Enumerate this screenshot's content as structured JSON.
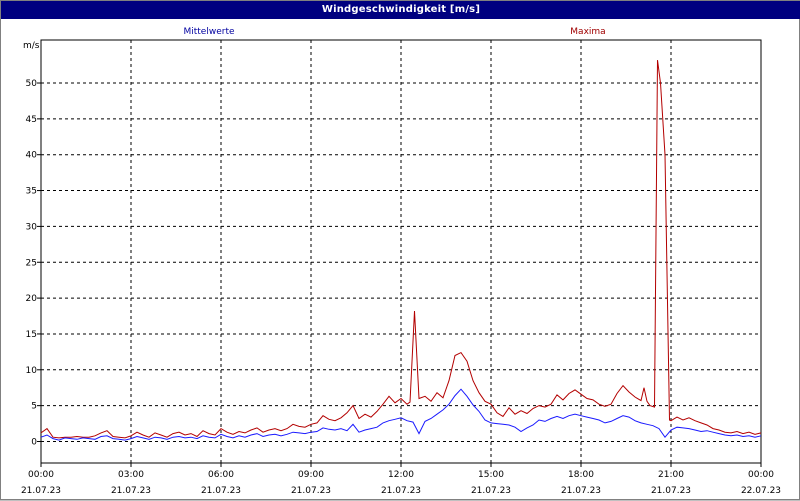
{
  "window": {
    "title": "Windgeschwindigkeit [m/s]"
  },
  "legend": {
    "left_label": "Mittelwerte",
    "right_label": "Maxima"
  },
  "colors": {
    "mean": "#1a1aff",
    "max": "#b30000",
    "legend_mean": "#0000a0",
    "legend_max": "#a00000",
    "titlebar": "#000080"
  },
  "chart_data": {
    "type": "line",
    "title": "Windgeschwindigkeit [m/s]",
    "ylabel": "m/s",
    "xlabel": "",
    "ylim": [
      -3,
      56
    ],
    "xlim": [
      0,
      24
    ],
    "grid": true,
    "legend_placement": "top",
    "y_ticks": [
      0,
      5,
      10,
      15,
      20,
      25,
      30,
      35,
      40,
      45,
      50
    ],
    "x_ticks": [
      {
        "x": 0,
        "time": "00:00",
        "date": "21.07.23"
      },
      {
        "x": 3,
        "time": "03:00",
        "date": "21.07.23"
      },
      {
        "x": 6,
        "time": "06:00",
        "date": "21.07.23"
      },
      {
        "x": 9,
        "time": "09:00",
        "date": "21.07.23"
      },
      {
        "x": 12,
        "time": "12:00",
        "date": "21.07.23"
      },
      {
        "x": 15,
        "time": "15:00",
        "date": "21.07.23"
      },
      {
        "x": 18,
        "time": "18:00",
        "date": "21.07.23"
      },
      {
        "x": 21,
        "time": "21:00",
        "date": "21.07.23"
      },
      {
        "x": 24,
        "time": "00:00",
        "date": "22.07.23"
      }
    ],
    "series": [
      {
        "name": "Mittelwerte",
        "color": "#1a1aff",
        "points": [
          [
            0.0,
            0.6
          ],
          [
            0.2,
            0.9
          ],
          [
            0.4,
            0.4
          ],
          [
            0.6,
            0.2
          ],
          [
            0.8,
            0.5
          ],
          [
            1.0,
            0.4
          ],
          [
            1.2,
            0.3
          ],
          [
            1.4,
            0.5
          ],
          [
            1.6,
            0.4
          ],
          [
            1.8,
            0.3
          ],
          [
            2.0,
            0.7
          ],
          [
            2.2,
            0.8
          ],
          [
            2.4,
            0.4
          ],
          [
            2.6,
            0.3
          ],
          [
            2.8,
            0.2
          ],
          [
            3.0,
            0.4
          ],
          [
            3.2,
            0.7
          ],
          [
            3.4,
            0.5
          ],
          [
            3.6,
            0.3
          ],
          [
            3.8,
            0.6
          ],
          [
            4.0,
            0.5
          ],
          [
            4.2,
            0.3
          ],
          [
            4.4,
            0.6
          ],
          [
            4.6,
            0.7
          ],
          [
            4.8,
            0.5
          ],
          [
            5.0,
            0.6
          ],
          [
            5.2,
            0.4
          ],
          [
            5.4,
            0.8
          ],
          [
            5.6,
            0.6
          ],
          [
            5.8,
            0.5
          ],
          [
            6.0,
            1.0
          ],
          [
            6.2,
            0.7
          ],
          [
            6.4,
            0.5
          ],
          [
            6.6,
            0.8
          ],
          [
            6.8,
            0.6
          ],
          [
            7.0,
            0.9
          ],
          [
            7.2,
            1.1
          ],
          [
            7.4,
            0.7
          ],
          [
            7.6,
            0.9
          ],
          [
            7.8,
            1.0
          ],
          [
            8.0,
            0.8
          ],
          [
            8.2,
            1.0
          ],
          [
            8.4,
            1.3
          ],
          [
            8.6,
            1.2
          ],
          [
            8.8,
            1.1
          ],
          [
            9.0,
            1.3
          ],
          [
            9.2,
            1.4
          ],
          [
            9.4,
            1.9
          ],
          [
            9.6,
            1.7
          ],
          [
            9.8,
            1.6
          ],
          [
            10.0,
            1.8
          ],
          [
            10.2,
            1.5
          ],
          [
            10.4,
            2.4
          ],
          [
            10.6,
            1.3
          ],
          [
            10.8,
            1.6
          ],
          [
            11.0,
            1.8
          ],
          [
            11.2,
            2.0
          ],
          [
            11.4,
            2.6
          ],
          [
            11.6,
            2.9
          ],
          [
            11.8,
            3.1
          ],
          [
            12.0,
            3.3
          ],
          [
            12.2,
            2.9
          ],
          [
            12.4,
            2.7
          ],
          [
            12.6,
            1.1
          ],
          [
            12.8,
            2.8
          ],
          [
            13.0,
            3.2
          ],
          [
            13.2,
            3.8
          ],
          [
            13.4,
            4.4
          ],
          [
            13.6,
            5.2
          ],
          [
            13.8,
            6.4
          ],
          [
            14.0,
            7.3
          ],
          [
            14.2,
            6.3
          ],
          [
            14.4,
            5.1
          ],
          [
            14.6,
            4.2
          ],
          [
            14.8,
            3.0
          ],
          [
            15.0,
            2.6
          ],
          [
            15.2,
            2.5
          ],
          [
            15.4,
            2.4
          ],
          [
            15.6,
            2.3
          ],
          [
            15.8,
            2.0
          ],
          [
            16.0,
            1.4
          ],
          [
            16.2,
            1.9
          ],
          [
            16.4,
            2.3
          ],
          [
            16.6,
            3.0
          ],
          [
            16.8,
            2.8
          ],
          [
            17.0,
            3.2
          ],
          [
            17.2,
            3.5
          ],
          [
            17.4,
            3.2
          ],
          [
            17.6,
            3.6
          ],
          [
            17.8,
            3.8
          ],
          [
            18.0,
            3.6
          ],
          [
            18.2,
            3.4
          ],
          [
            18.4,
            3.2
          ],
          [
            18.6,
            3.0
          ],
          [
            18.8,
            2.6
          ],
          [
            19.0,
            2.8
          ],
          [
            19.2,
            3.2
          ],
          [
            19.4,
            3.6
          ],
          [
            19.6,
            3.4
          ],
          [
            19.8,
            2.9
          ],
          [
            20.0,
            2.6
          ],
          [
            20.2,
            2.4
          ],
          [
            20.4,
            2.2
          ],
          [
            20.6,
            1.8
          ],
          [
            20.8,
            0.6
          ],
          [
            21.0,
            1.6
          ],
          [
            21.2,
            2.0
          ],
          [
            21.4,
            1.9
          ],
          [
            21.6,
            1.8
          ],
          [
            21.8,
            1.6
          ],
          [
            22.0,
            1.4
          ],
          [
            22.2,
            1.5
          ],
          [
            22.4,
            1.3
          ],
          [
            22.6,
            1.1
          ],
          [
            22.8,
            0.9
          ],
          [
            23.0,
            0.8
          ],
          [
            23.2,
            0.9
          ],
          [
            23.4,
            0.7
          ],
          [
            23.6,
            0.8
          ],
          [
            23.8,
            0.6
          ],
          [
            24.0,
            0.8
          ]
        ]
      },
      {
        "name": "Maxima",
        "color": "#b30000",
        "points": [
          [
            0.0,
            1.2
          ],
          [
            0.2,
            1.8
          ],
          [
            0.4,
            0.6
          ],
          [
            0.6,
            0.5
          ],
          [
            0.8,
            0.6
          ],
          [
            1.0,
            0.6
          ],
          [
            1.2,
            0.7
          ],
          [
            1.4,
            0.6
          ],
          [
            1.6,
            0.6
          ],
          [
            1.8,
            0.8
          ],
          [
            2.0,
            1.2
          ],
          [
            2.2,
            1.5
          ],
          [
            2.4,
            0.7
          ],
          [
            2.6,
            0.6
          ],
          [
            2.8,
            0.5
          ],
          [
            3.0,
            0.8
          ],
          [
            3.2,
            1.3
          ],
          [
            3.4,
            0.9
          ],
          [
            3.6,
            0.6
          ],
          [
            3.8,
            1.2
          ],
          [
            4.0,
            0.9
          ],
          [
            4.2,
            0.6
          ],
          [
            4.4,
            1.1
          ],
          [
            4.6,
            1.3
          ],
          [
            4.8,
            0.9
          ],
          [
            5.0,
            1.1
          ],
          [
            5.2,
            0.7
          ],
          [
            5.4,
            1.5
          ],
          [
            5.6,
            1.1
          ],
          [
            5.8,
            0.9
          ],
          [
            6.0,
            1.8
          ],
          [
            6.2,
            1.3
          ],
          [
            6.4,
            1.0
          ],
          [
            6.6,
            1.4
          ],
          [
            6.8,
            1.2
          ],
          [
            7.0,
            1.6
          ],
          [
            7.2,
            1.9
          ],
          [
            7.4,
            1.3
          ],
          [
            7.6,
            1.6
          ],
          [
            7.8,
            1.8
          ],
          [
            8.0,
            1.5
          ],
          [
            8.2,
            1.8
          ],
          [
            8.4,
            2.4
          ],
          [
            8.6,
            2.1
          ],
          [
            8.8,
            2.0
          ],
          [
            9.0,
            2.4
          ],
          [
            9.2,
            2.6
          ],
          [
            9.4,
            3.6
          ],
          [
            9.6,
            3.1
          ],
          [
            9.8,
            2.9
          ],
          [
            10.0,
            3.3
          ],
          [
            10.2,
            4.0
          ],
          [
            10.4,
            5.0
          ],
          [
            10.6,
            3.2
          ],
          [
            10.8,
            3.8
          ],
          [
            11.0,
            3.4
          ],
          [
            11.2,
            4.2
          ],
          [
            11.4,
            5.2
          ],
          [
            11.6,
            6.3
          ],
          [
            11.8,
            5.4
          ],
          [
            12.0,
            6.0
          ],
          [
            12.2,
            5.2
          ],
          [
            12.3,
            5.5
          ],
          [
            12.45,
            18.2
          ],
          [
            12.6,
            6.0
          ],
          [
            12.8,
            6.3
          ],
          [
            13.0,
            5.6
          ],
          [
            13.2,
            6.8
          ],
          [
            13.4,
            6.1
          ],
          [
            13.6,
            8.5
          ],
          [
            13.8,
            12.0
          ],
          [
            14.0,
            12.4
          ],
          [
            14.2,
            11.2
          ],
          [
            14.4,
            8.5
          ],
          [
            14.6,
            6.8
          ],
          [
            14.8,
            5.6
          ],
          [
            15.0,
            5.2
          ],
          [
            15.2,
            4.0
          ],
          [
            15.4,
            3.5
          ],
          [
            15.6,
            4.7
          ],
          [
            15.8,
            3.8
          ],
          [
            16.0,
            4.3
          ],
          [
            16.2,
            3.9
          ],
          [
            16.4,
            4.6
          ],
          [
            16.6,
            5.0
          ],
          [
            16.8,
            4.8
          ],
          [
            17.0,
            5.2
          ],
          [
            17.2,
            6.5
          ],
          [
            17.4,
            5.8
          ],
          [
            17.6,
            6.7
          ],
          [
            17.8,
            7.2
          ],
          [
            18.0,
            6.6
          ],
          [
            18.2,
            6.0
          ],
          [
            18.4,
            5.8
          ],
          [
            18.6,
            5.2
          ],
          [
            18.8,
            4.9
          ],
          [
            19.0,
            5.2
          ],
          [
            19.2,
            6.7
          ],
          [
            19.4,
            7.8
          ],
          [
            19.6,
            6.9
          ],
          [
            19.8,
            6.2
          ],
          [
            20.0,
            5.7
          ],
          [
            20.1,
            7.5
          ],
          [
            20.2,
            5.6
          ],
          [
            20.3,
            5.0
          ],
          [
            20.45,
            4.8
          ],
          [
            20.55,
            53.2
          ],
          [
            20.65,
            50.0
          ],
          [
            20.8,
            40.0
          ],
          [
            20.95,
            3.0
          ],
          [
            21.0,
            2.9
          ],
          [
            21.2,
            3.4
          ],
          [
            21.4,
            3.0
          ],
          [
            21.6,
            3.3
          ],
          [
            21.8,
            2.9
          ],
          [
            22.0,
            2.6
          ],
          [
            22.2,
            2.3
          ],
          [
            22.4,
            1.8
          ],
          [
            22.6,
            1.6
          ],
          [
            22.8,
            1.3
          ],
          [
            23.0,
            1.2
          ],
          [
            23.2,
            1.4
          ],
          [
            23.4,
            1.1
          ],
          [
            23.6,
            1.3
          ],
          [
            23.8,
            1.0
          ],
          [
            24.0,
            1.2
          ]
        ]
      }
    ]
  }
}
